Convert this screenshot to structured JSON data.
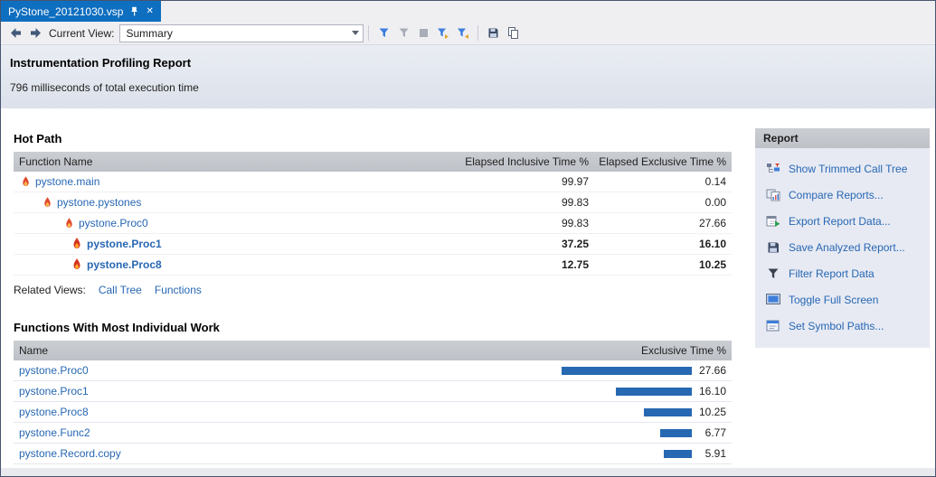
{
  "colors": {
    "accent": "#0E6EBF",
    "link": "#2767B3",
    "bar": "#2768B2"
  },
  "tab": {
    "title": "PyStone_20121030.vsp"
  },
  "toolbar": {
    "current_view_label": "Current View:",
    "view_value": "Summary"
  },
  "header": {
    "title": "Instrumentation Profiling Report",
    "subtitle": "796 milliseconds of total execution time"
  },
  "hot_path": {
    "title": "Hot Path",
    "columns": [
      "Function Name",
      "Elapsed Inclusive Time %",
      "Elapsed Exclusive Time %"
    ],
    "rows": [
      {
        "name": "pystone.main",
        "inclusive": "99.97",
        "exclusive": "0.14",
        "indent": 0,
        "bold": false
      },
      {
        "name": "pystone.pystones",
        "inclusive": "99.83",
        "exclusive": "0.00",
        "indent": 1,
        "bold": false
      },
      {
        "name": "pystone.Proc0",
        "inclusive": "99.83",
        "exclusive": "27.66",
        "indent": 2,
        "bold": false
      },
      {
        "name": "pystone.Proc1",
        "inclusive": "37.25",
        "exclusive": "16.10",
        "indent": 3,
        "bold": true
      },
      {
        "name": "pystone.Proc8",
        "inclusive": "12.75",
        "exclusive": "10.25",
        "indent": 3,
        "bold": true
      }
    ],
    "related_views_label": "Related Views:",
    "related_links": [
      "Call Tree",
      "Functions"
    ]
  },
  "individual_work": {
    "title": "Functions With Most Individual Work",
    "columns": [
      "Name",
      "Exclusive Time %"
    ],
    "rows": [
      {
        "name": "pystone.Proc0",
        "value": 27.66,
        "display": "27.66"
      },
      {
        "name": "pystone.Proc1",
        "value": 16.1,
        "display": "16.10"
      },
      {
        "name": "pystone.Proc8",
        "value": 10.25,
        "display": "10.25"
      },
      {
        "name": "pystone.Func2",
        "value": 6.77,
        "display": "6.77"
      },
      {
        "name": "pystone.Record.copy",
        "value": 5.91,
        "display": "5.91"
      }
    ]
  },
  "report_panel": {
    "title": "Report",
    "items": [
      {
        "label": "Show Trimmed Call Tree"
      },
      {
        "label": "Compare Reports..."
      },
      {
        "label": "Export Report Data..."
      },
      {
        "label": "Save Analyzed Report..."
      },
      {
        "label": "Filter Report Data"
      },
      {
        "label": "Toggle Full Screen"
      },
      {
        "label": "Set Symbol Paths..."
      }
    ]
  }
}
